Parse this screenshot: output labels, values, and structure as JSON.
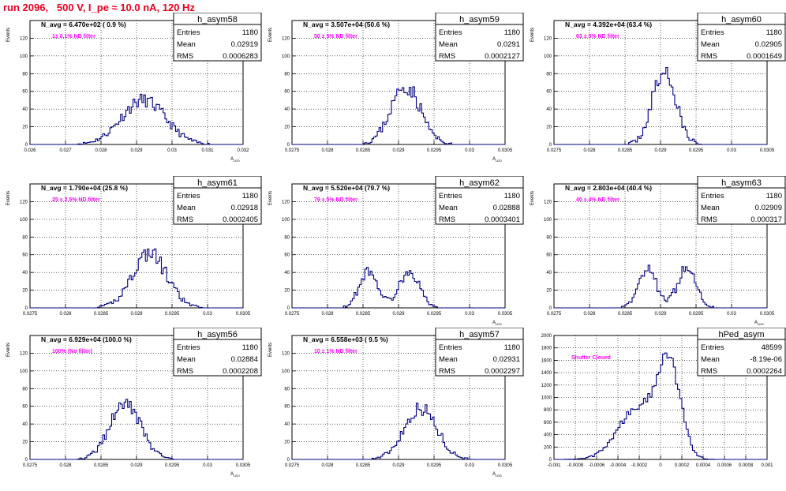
{
  "page": {
    "run_title": "run 2096,   500 V, I_pe ≈ 10.0 nA, 120 Hz",
    "colors": {
      "title": "#e8001c",
      "hist": "#000080",
      "annotation": "#ff00ff",
      "grid": "#000000"
    }
  },
  "chart_data": [
    {
      "type": "histogram",
      "name": "h_asym58",
      "navg_text": "N_avg = 6.470e+02 ( 0.9 %)",
      "filter_text": "1± 0.1% ND filter",
      "stats": {
        "entries_label": "Entries",
        "entries": "1180",
        "mean_label": "Mean",
        "mean": "0.02919",
        "rms_label": "RMS",
        "rms": "0.0006283"
      },
      "ylabel": "Events",
      "xlabel": "A_LED",
      "xlim": [
        0.026,
        0.032
      ],
      "ylim": [
        0,
        140
      ],
      "xticks": [
        0.026,
        0.027,
        0.028,
        0.029,
        0.03,
        0.031,
        0.032
      ],
      "xtick_labels": [
        "0.026",
        "0.027",
        "0.028",
        "0.029",
        "0.03",
        "0.031",
        "0.032"
      ],
      "yticks": [
        0,
        20,
        40,
        60,
        80,
        100,
        120
      ],
      "ytick_labels": [
        "0",
        "20",
        "40",
        "60",
        "80",
        "100",
        "120"
      ],
      "bin_width": 5e-05,
      "peaks": [
        {
          "mu": 0.02919,
          "sigma": 0.00062,
          "amp": 50
        }
      ],
      "noise_amp": 8,
      "seed": 11
    },
    {
      "type": "histogram",
      "name": "h_asym59",
      "navg_text": "N_avg = 3.507e+04 (50.6 %)",
      "filter_text": "50 ± 5% ND filter",
      "stats": {
        "entries_label": "Entries",
        "entries": "1180",
        "mean_label": "Mean",
        "mean": "0.0291",
        "rms_label": "RMS",
        "rms": "0.0002127"
      },
      "ylabel": "Events",
      "xlabel": "A_LED",
      "xlim": [
        0.0275,
        0.0305
      ],
      "ylim": [
        0,
        140
      ],
      "xticks": [
        0.0275,
        0.028,
        0.0285,
        0.029,
        0.0295,
        0.03,
        0.0305
      ],
      "xtick_labels": [
        "0.0275",
        "0.028",
        "0.0285",
        "0.029",
        "0.0295",
        "0.03",
        "0.0305"
      ],
      "yticks": [
        0,
        20,
        40,
        60,
        80,
        100,
        120
      ],
      "ytick_labels": [
        "0",
        "20",
        "40",
        "60",
        "80",
        "100",
        "120"
      ],
      "bin_width": 2.5e-05,
      "peaks": [
        {
          "mu": 0.0291,
          "sigma": 0.00021,
          "amp": 66
        }
      ],
      "noise_amp": 9,
      "seed": 23
    },
    {
      "type": "histogram",
      "name": "h_asym60",
      "navg_text": "N_avg = 4.392e+04 (63.4 %)",
      "filter_text": "63 ± 5% ND filter",
      "stats": {
        "entries_label": "Entries",
        "entries": "1180",
        "mean_label": "Mean",
        "mean": "0.02905",
        "rms_label": "RMS",
        "rms": "0.0001649"
      },
      "ylabel": "Events",
      "xlabel": "",
      "xlim": [
        0.0275,
        0.0305
      ],
      "ylim": [
        0,
        140
      ],
      "xticks": [
        0.0275,
        0.028,
        0.0285,
        0.029,
        0.0295,
        0.03,
        0.0305
      ],
      "xtick_labels": [
        "0.0275",
        "0.028",
        "0.0285",
        "0.029",
        "0.0295",
        "0.03",
        "0.0305"
      ],
      "yticks": [
        0,
        20,
        40,
        60,
        80,
        100,
        120
      ],
      "ytick_labels": [
        "0",
        "20",
        "40",
        "60",
        "80",
        "100",
        "120"
      ],
      "bin_width": 2.5e-05,
      "peaks": [
        {
          "mu": 0.02905,
          "sigma": 0.000165,
          "amp": 82
        }
      ],
      "noise_amp": 10,
      "seed": 37
    },
    {
      "type": "histogram",
      "name": "h_asym61",
      "navg_text": "N_avg = 1.790e+04 (25.8 %)",
      "filter_text": "25 ± 2.5% ND filter",
      "stats": {
        "entries_label": "Entries",
        "entries": "1180",
        "mean_label": "Mean",
        "mean": "0.02918",
        "rms_label": "RMS",
        "rms": "0.0002405"
      },
      "ylabel": "Events",
      "xlabel": "",
      "xlim": [
        0.0275,
        0.0305
      ],
      "ylim": [
        0,
        140
      ],
      "xticks": [
        0.0275,
        0.028,
        0.0285,
        0.029,
        0.0295,
        0.03,
        0.0305
      ],
      "xtick_labels": [
        "0.0275",
        "0.028",
        "0.0285",
        "0.029",
        "0.0295",
        "0.03",
        "0.0305"
      ],
      "yticks": [
        0,
        20,
        40,
        60,
        80,
        100,
        120
      ],
      "ytick_labels": [
        "0",
        "20",
        "40",
        "60",
        "80",
        "100",
        "120"
      ],
      "bin_width": 2.5e-05,
      "peaks": [
        {
          "mu": 0.02918,
          "sigma": 0.00024,
          "amp": 62
        }
      ],
      "noise_amp": 9,
      "seed": 41
    },
    {
      "type": "histogram",
      "name": "h_asym62",
      "navg_text": "N_avg = 5.520e+04 (79.7 %)",
      "filter_text": "79 ± 5% ND filter",
      "stats": {
        "entries_label": "Entries",
        "entries": "1180",
        "mean_label": "Mean",
        "mean": "0.02888",
        "rms_label": "RMS",
        "rms": "0.0003401"
      },
      "ylabel": "Events",
      "xlabel": "A_LED",
      "xlim": [
        0.0275,
        0.0305
      ],
      "ylim": [
        0,
        140
      ],
      "xticks": [
        0.0275,
        0.028,
        0.0285,
        0.029,
        0.0295,
        0.03,
        0.0305
      ],
      "xtick_labels": [
        "0.0275",
        "0.028",
        "0.0285",
        "0.029",
        "0.0295",
        "0.03",
        "0.0305"
      ],
      "yticks": [
        0,
        20,
        40,
        60,
        80,
        100,
        120
      ],
      "ytick_labels": [
        "0",
        "20",
        "40",
        "60",
        "80",
        "100",
        "120"
      ],
      "bin_width": 2.5e-05,
      "peaks": [
        {
          "mu": 0.02858,
          "sigma": 0.00013,
          "amp": 42
        },
        {
          "mu": 0.02915,
          "sigma": 0.00014,
          "amp": 42
        }
      ],
      "noise_amp": 7,
      "seed": 53
    },
    {
      "type": "histogram",
      "name": "h_asym63",
      "navg_text": "N_avg = 2.803e+04 (40.4 %)",
      "filter_text": "40 ± 4% ND filter",
      "stats": {
        "entries_label": "Entries",
        "entries": "1180",
        "mean_label": "Mean",
        "mean": "0.02909",
        "rms_label": "RMS",
        "rms": "0.000317"
      },
      "ylabel": "Events",
      "xlabel": "A_LED",
      "xlim": [
        0.0275,
        0.0305
      ],
      "ylim": [
        0,
        140
      ],
      "xticks": [
        0.0275,
        0.028,
        0.0285,
        0.029,
        0.0295,
        0.03,
        0.0305
      ],
      "xtick_labels": [
        "0.0275",
        "0.028",
        "0.0285",
        "0.029",
        "0.0295",
        "0.03",
        "0.0305"
      ],
      "yticks": [
        0,
        20,
        40,
        60,
        80,
        100,
        120
      ],
      "ytick_labels": [
        "0",
        "20",
        "40",
        "60",
        "80",
        "100",
        "120"
      ],
      "bin_width": 2.5e-05,
      "peaks": [
        {
          "mu": 0.02882,
          "sigma": 0.00013,
          "amp": 42
        },
        {
          "mu": 0.02937,
          "sigma": 0.00013,
          "amp": 44
        }
      ],
      "noise_amp": 8,
      "seed": 67
    },
    {
      "type": "histogram",
      "name": "h_asym56",
      "navg_text": "N_avg = 6.929e+04 (100.0 %)",
      "filter_text": "100% (No filter)",
      "stats": {
        "entries_label": "Entries",
        "entries": "1180",
        "mean_label": "Mean",
        "mean": "0.02884",
        "rms_label": "RMS",
        "rms": "0.0002208"
      },
      "ylabel": "Events",
      "xlabel": "A_LED",
      "xlim": [
        0.0275,
        0.0305
      ],
      "ylim": [
        0,
        140
      ],
      "xticks": [
        0.0275,
        0.028,
        0.0285,
        0.029,
        0.0295,
        0.03,
        0.0305
      ],
      "xtick_labels": [
        "0.0275",
        "0.028",
        "0.0285",
        "0.029",
        "0.0295",
        "0.03",
        "0.0305"
      ],
      "yticks": [
        0,
        20,
        40,
        60,
        80,
        100,
        120
      ],
      "ytick_labels": [
        "0",
        "20",
        "40",
        "60",
        "80",
        "100",
        "120"
      ],
      "bin_width": 2.5e-05,
      "peaks": [
        {
          "mu": 0.02884,
          "sigma": 0.00022,
          "amp": 62
        }
      ],
      "noise_amp": 8,
      "seed": 79
    },
    {
      "type": "histogram",
      "name": "h_asym57",
      "navg_text": "N_avg = 6.558e+03 ( 9.5 %)",
      "filter_text": "10 ± 1% ND filter",
      "stats": {
        "entries_label": "Entries",
        "entries": "1180",
        "mean_label": "Mean",
        "mean": "0.02931",
        "rms_label": "RMS",
        "rms": "0.0002297"
      },
      "ylabel": "Events",
      "xlabel": "A_LED",
      "xlim": [
        0.0275,
        0.0305
      ],
      "ylim": [
        0,
        140
      ],
      "xticks": [
        0.0275,
        0.028,
        0.0285,
        0.029,
        0.0295,
        0.03,
        0.0305
      ],
      "xtick_labels": [
        "0.0275",
        "0.028",
        "0.0285",
        "0.029",
        "0.0295",
        "0.03",
        "0.0305"
      ],
      "yticks": [
        0,
        20,
        40,
        60,
        80,
        100,
        120
      ],
      "ytick_labels": [
        "0",
        "20",
        "40",
        "60",
        "80",
        "100",
        "120"
      ],
      "bin_width": 2.5e-05,
      "peaks": [
        {
          "mu": 0.02931,
          "sigma": 0.00023,
          "amp": 58
        }
      ],
      "noise_amp": 8,
      "seed": 97
    },
    {
      "type": "histogram",
      "name": "hPed_asym",
      "navg_text": "",
      "filter_text": "Shutter Closed",
      "stats": {
        "entries_label": "Entries",
        "entries": "48599",
        "mean_label": "Mean",
        "mean": "-8.19e-06",
        "rms_label": "RMS",
        "rms": "0.0002264"
      },
      "ylabel": "",
      "xlabel": "",
      "xlim": [
        -0.001,
        0.001
      ],
      "ylim": [
        0,
        2000
      ],
      "xticks": [
        -0.001,
        -0.0008,
        -0.0006,
        -0.0004,
        -0.0002,
        0,
        0.0002,
        0.0004,
        0.0006,
        0.0008,
        0.001
      ],
      "xtick_labels": [
        "-0.001",
        "-0.0008",
        "-0.0006",
        "-0.0004",
        "-0.0002",
        "0",
        "0.0002",
        "0.0004",
        "0.0006",
        "0.0008",
        "0.001"
      ],
      "yticks": [
        0,
        200,
        400,
        600,
        800,
        1000,
        1200,
        1400,
        1600,
        1800,
        2000
      ],
      "ytick_labels": [
        "0",
        "200",
        "400",
        "600",
        "800",
        "1000",
        "1200",
        "1400",
        "1600",
        "1800",
        "2000"
      ],
      "bin_width": 2e-05,
      "peaks": [
        {
          "mu": 8e-05,
          "sigma": 0.00011,
          "amp": 1450
        },
        {
          "mu": -0.00022,
          "sigma": 0.00018,
          "amp": 820
        }
      ],
      "noise_amp": 60,
      "seed": 113
    }
  ]
}
